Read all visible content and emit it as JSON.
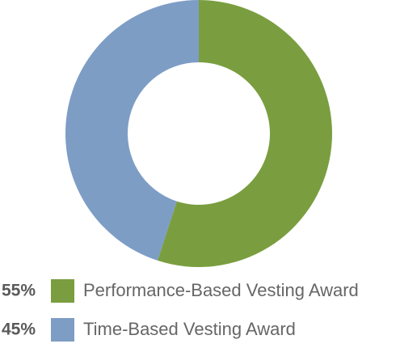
{
  "chart_data": {
    "type": "pie",
    "categories": [
      "Performance-Based Vesting Award",
      "Time-Based Vesting Award"
    ],
    "values": [
      55,
      45
    ],
    "value_labels": [
      "55%",
      "45%"
    ],
    "colors": [
      "#7a9e3f",
      "#7d9dc5"
    ],
    "donut": true
  }
}
